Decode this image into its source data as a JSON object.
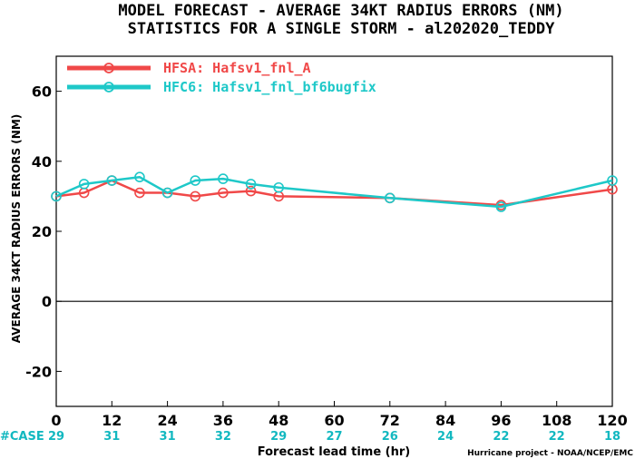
{
  "chart_data": {
    "type": "line",
    "title": "MODEL FORECAST - AVERAGE 34KT RADIUS ERRORS (NM)",
    "subtitle": "STATISTICS FOR A SINGLE STORM - al202020_TEDDY",
    "xlabel": "Forecast lead time (hr)",
    "ylabel": "AVERAGE 34KT RADIUS ERRORS (NM)",
    "xlim": [
      0,
      120
    ],
    "ylim": [
      -30,
      70
    ],
    "x_ticks": [
      "0",
      "12",
      "24",
      "36",
      "48",
      "60",
      "72",
      "84",
      "96",
      "108",
      "120"
    ],
    "y_ticks": [
      "-20",
      "0",
      "20",
      "40",
      "60"
    ],
    "grid": false,
    "legend_position": "top-left",
    "series": [
      {
        "name": "HFSA: Hafsv1_fnl_A",
        "color": "#f04848",
        "x": [
          0,
          6,
          12,
          18,
          24,
          30,
          36,
          42,
          48,
          72,
          96,
          120
        ],
        "y": [
          30,
          31,
          34.5,
          31,
          31,
          30,
          31,
          31.5,
          30,
          29.5,
          27.5,
          32
        ]
      },
      {
        "name": "HFC6: Hafsv1_fnl_bf6bugfix",
        "color": "#1ec8c8",
        "x": [
          0,
          6,
          12,
          18,
          24,
          30,
          36,
          42,
          48,
          72,
          96,
          120
        ],
        "y": [
          30,
          33.5,
          34.5,
          35.5,
          31,
          34.5,
          35,
          33.5,
          32.5,
          29.5,
          27,
          34.5
        ]
      }
    ],
    "case_label": "#CASE",
    "case_counts": [
      {
        "x": 0,
        "label": "29"
      },
      {
        "x": 12,
        "label": "31"
      },
      {
        "x": 24,
        "label": "31"
      },
      {
        "x": 36,
        "label": "32"
      },
      {
        "x": 48,
        "label": "29"
      },
      {
        "x": 60,
        "label": "27"
      },
      {
        "x": 72,
        "label": "26"
      },
      {
        "x": 84,
        "label": "24"
      },
      {
        "x": 96,
        "label": "22"
      },
      {
        "x": 108,
        "label": "22"
      },
      {
        "x": 120,
        "label": "18"
      }
    ],
    "credit": "Hurricane project - NOAA/NCEP/EMC"
  }
}
